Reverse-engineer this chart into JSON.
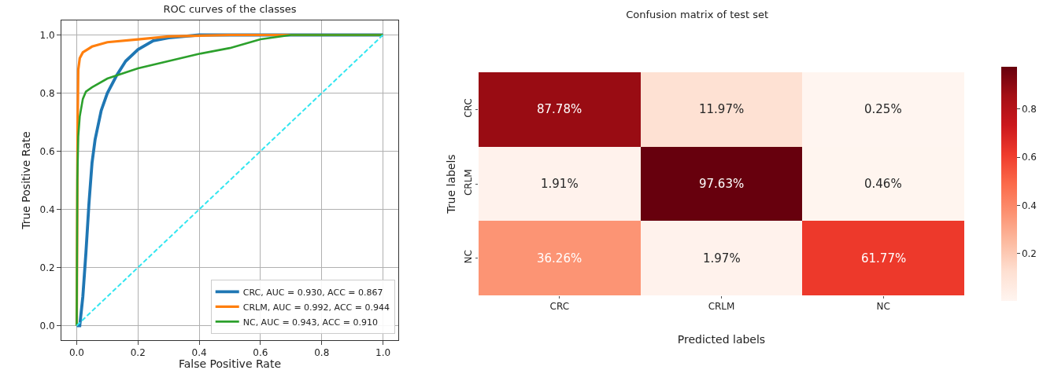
{
  "chart_data": [
    {
      "type": "line",
      "title": "ROC curves of the classes",
      "xlabel": "False Positive Rate",
      "ylabel": "True Positive Rate",
      "xlim": [
        -0.05,
        1.05
      ],
      "ylim": [
        -0.05,
        1.05
      ],
      "xticks": [
        {
          "value": 0,
          "label": "0.0"
        },
        {
          "value": 0.2,
          "label": "0.2"
        },
        {
          "value": 0.4,
          "label": "0.4"
        },
        {
          "value": 0.6,
          "label": "0.6"
        },
        {
          "value": 0.8,
          "label": "0.8"
        },
        {
          "value": 1,
          "label": "1.0"
        }
      ],
      "yticks": [
        {
          "value": 0,
          "label": "0.0"
        },
        {
          "value": 0.2,
          "label": "0.2"
        },
        {
          "value": 0.4,
          "label": "0.4"
        },
        {
          "value": 0.6,
          "label": "0.6"
        },
        {
          "value": 0.8,
          "label": "0.8"
        },
        {
          "value": 1,
          "label": "1.0"
        }
      ],
      "grid": true,
      "legend": "bottom right",
      "line_style": "solid",
      "series": [
        {
          "name": "CRC, AUC = 0.930, ACC = 0.867",
          "color": "#1f77b4",
          "x": [
            0,
            0.01,
            0.02,
            0.03,
            0.04,
            0.05,
            0.06,
            0.08,
            0.1,
            0.13,
            0.16,
            0.2,
            0.25,
            0.3,
            0.4,
            1
          ],
          "values": [
            0,
            0,
            0.1,
            0.25,
            0.42,
            0.56,
            0.64,
            0.74,
            0.8,
            0.86,
            0.91,
            0.95,
            0.98,
            0.99,
            1,
            1
          ]
        },
        {
          "name": "CRLM, AUC = 0.992, ACC = 0.944",
          "color": "#ff7f0e",
          "x": [
            0,
            0.003,
            0.005,
            0.01,
            0.02,
            0.05,
            0.1,
            0.2,
            0.3,
            0.5,
            1
          ],
          "values": [
            0,
            0.7,
            0.88,
            0.92,
            0.94,
            0.96,
            0.975,
            0.985,
            0.995,
            1,
            1
          ]
        },
        {
          "name": "NC, AUC = 0.943, ACC = 0.910",
          "color": "#2ca02c",
          "x": [
            0,
            0.002,
            0.005,
            0.01,
            0.02,
            0.03,
            0.05,
            0.1,
            0.2,
            0.3,
            0.4,
            0.5,
            0.6,
            0.7,
            1
          ],
          "values": [
            0,
            0.5,
            0.65,
            0.72,
            0.78,
            0.805,
            0.82,
            0.85,
            0.885,
            0.91,
            0.935,
            0.955,
            0.985,
            1,
            1
          ]
        },
        {
          "color": "#33e6f0",
          "line_style": "dashed",
          "x": [
            0,
            1
          ],
          "values": [
            0,
            1
          ]
        }
      ]
    },
    {
      "type": "heatmap",
      "title": "Confusion matrix of test set",
      "xlabel": "Predicted labels",
      "ylabel": "True labels",
      "categories": [
        "CRC",
        "CRLM",
        "NC"
      ],
      "y_categories": [
        "CRC",
        "CRLM",
        "NC"
      ],
      "cells": [
        [
          0.8778,
          0.1197,
          0.0025
        ],
        [
          0.0191,
          0.9763,
          0.0046
        ],
        [
          0.3626,
          0.0197,
          0.6177
        ]
      ],
      "cell_labels": [
        [
          "87.78%",
          "11.97%",
          "0.25%"
        ],
        [
          "1.91%",
          "97.63%",
          "0.46%"
        ],
        [
          "36.26%",
          "1.97%",
          "61.77%"
        ]
      ],
      "clim": [
        0.0025,
        0.9763
      ],
      "cticks": [
        0.2,
        0.4,
        0.6,
        0.8
      ]
    }
  ]
}
